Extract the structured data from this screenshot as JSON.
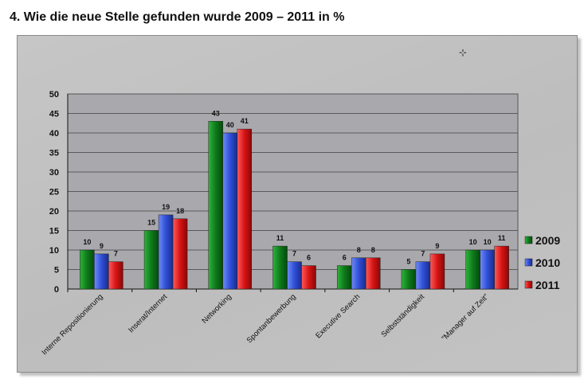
{
  "page": {
    "title": "4.  Wie die neue Stelle gefunden wurde 2009 – 2011 in %"
  },
  "colors": {
    "2009": "#0d7a1a",
    "2010": "#2f4fd6",
    "2011": "#d61414",
    "plot_background": "#a8a8ac",
    "panel_background": "#c2c2c2",
    "grid": "#5a5a5a"
  },
  "chart_data": {
    "type": "bar",
    "title": "4.  Wie die neue Stelle gefunden wurde 2009 – 2011 in %",
    "xlabel": "",
    "ylabel": "",
    "ylim": [
      0,
      50
    ],
    "yticks": [
      0,
      5,
      10,
      15,
      20,
      25,
      30,
      35,
      40,
      45,
      50
    ],
    "grid": true,
    "legend_position": "right",
    "categories": [
      "Interne Repositionierung",
      "Inserat/Internet",
      "Networking",
      "Spontanbewerbung",
      "Executive Search",
      "Selbstständigkeit",
      "\"Manager auf Zeit\""
    ],
    "series": [
      {
        "name": "2009",
        "values": [
          10,
          15,
          43,
          11,
          6,
          5,
          10
        ]
      },
      {
        "name": "2010",
        "values": [
          9,
          19,
          40,
          7,
          8,
          7,
          10
        ]
      },
      {
        "name": "2011",
        "values": [
          7,
          18,
          41,
          6,
          8,
          9,
          11
        ]
      }
    ],
    "data_labels": true
  }
}
